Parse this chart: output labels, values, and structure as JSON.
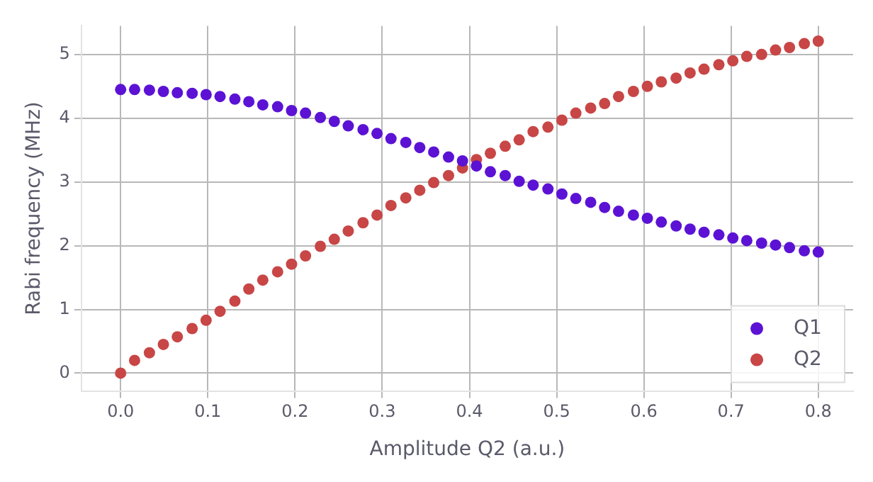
{
  "chart_data": {
    "type": "scatter",
    "xlabel": "Amplitude Q2 (a.u.)",
    "ylabel": "Rabi frequency (MHz)",
    "x": [
      0,
      0.016,
      0.033,
      0.049,
      0.065,
      0.082,
      0.098,
      0.114,
      0.131,
      0.147,
      0.163,
      0.18,
      0.196,
      0.212,
      0.229,
      0.245,
      0.261,
      0.278,
      0.294,
      0.31,
      0.327,
      0.343,
      0.359,
      0.376,
      0.392,
      0.408,
      0.424,
      0.441,
      0.457,
      0.473,
      0.49,
      0.506,
      0.522,
      0.539,
      0.555,
      0.571,
      0.588,
      0.604,
      0.62,
      0.637,
      0.653,
      0.669,
      0.686,
      0.702,
      0.718,
      0.735,
      0.751,
      0.767,
      0.784,
      0.8
    ],
    "series": [
      {
        "name": "Q1",
        "color": "#5c12d4",
        "values": [
          4.45,
          4.45,
          4.44,
          4.42,
          4.4,
          4.39,
          4.37,
          4.34,
          4.3,
          4.26,
          4.21,
          4.18,
          4.12,
          4.08,
          4.01,
          3.95,
          3.88,
          3.82,
          3.76,
          3.68,
          3.62,
          3.54,
          3.47,
          3.39,
          3.33,
          3.25,
          3.16,
          3.1,
          3.01,
          2.95,
          2.89,
          2.81,
          2.74,
          2.68,
          2.6,
          2.54,
          2.48,
          2.43,
          2.37,
          2.31,
          2.26,
          2.21,
          2.17,
          2.12,
          2.08,
          2.04,
          2.01,
          1.97,
          1.92,
          1.9
        ]
      },
      {
        "name": "Q2",
        "color": "#c84646",
        "values": [
          0,
          0.2,
          0.32,
          0.45,
          0.57,
          0.7,
          0.83,
          0.97,
          1.13,
          1.32,
          1.46,
          1.59,
          1.71,
          1.84,
          1.99,
          2.1,
          2.23,
          2.36,
          2.48,
          2.63,
          2.75,
          2.87,
          2.99,
          3.1,
          3.22,
          3.35,
          3.45,
          3.56,
          3.66,
          3.79,
          3.86,
          3.97,
          4.08,
          4.16,
          4.23,
          4.34,
          4.42,
          4.5,
          4.57,
          4.63,
          4.71,
          4.77,
          4.84,
          4.9,
          4.97,
          5.0,
          5.07,
          5.11,
          5.17,
          5.21
        ]
      }
    ],
    "xlim": [
      -0.045,
      0.84
    ],
    "xticks": [
      {
        "value": 0,
        "label": "0.0"
      },
      0.1,
      0.2,
      0.3,
      0.4,
      0.5,
      0.6,
      0.7,
      0.8
    ],
    "ylim": [
      -0.28,
      5.45
    ],
    "yticks": [
      0,
      1,
      2,
      3,
      4,
      5
    ],
    "grid": true,
    "legend": "bottom right",
    "marker": "circle"
  }
}
